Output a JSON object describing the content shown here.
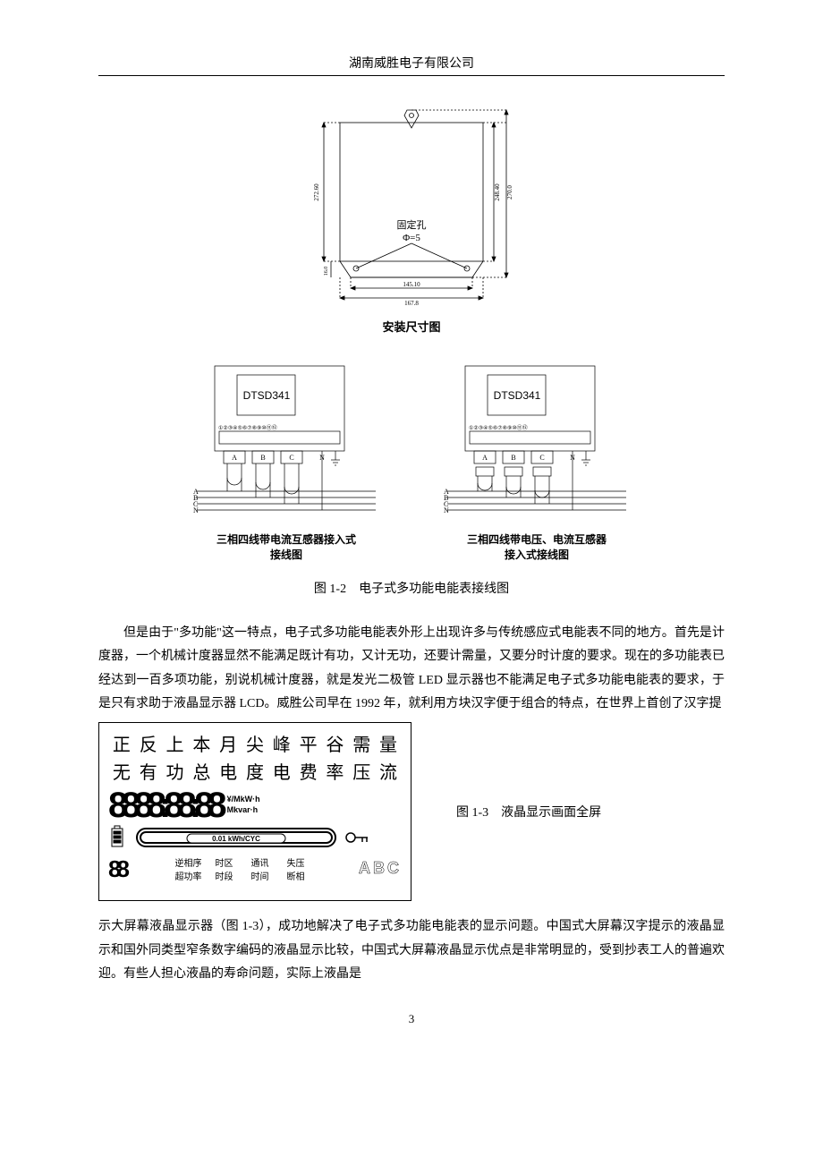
{
  "header": {
    "company": "湖南威胜电子有限公司"
  },
  "dim_diagram": {
    "caption": "安装尺寸图",
    "hole_label1": "固定孔",
    "hole_label2": "Φ=5",
    "w_inner": "145.10",
    "w_outer": "167.8",
    "h_left": "272.60",
    "h_r1": "248.40",
    "h_r2": "270.0",
    "h_bottom_offset": "16.0",
    "stroke": "#000000",
    "bg": "#ffffff"
  },
  "wiring": {
    "model": "DTSD341",
    "phases": [
      "A",
      "B",
      "C"
    ],
    "neutral": "N",
    "bus_labels": [
      "A",
      "B",
      "C",
      "N"
    ],
    "captions": {
      "left_l1": "三相四线带电流互感器接入式",
      "left_l2": "接线图",
      "right_l1": "三相四线带电压、电流互感器",
      "right_l2": "接入式接线图"
    },
    "fig_caption": "图 1-2　电子式多功能电能表接线图",
    "terminal_count": 12
  },
  "para1": "但是由于\"多功能\"这一特点，电子式多功能电能表外形上出现许多与传统感应式电能表不同的地方。首先是计度器，一个机械计度器显然不能满足既计有功，又计无功，还要计需量，又要分时计度的要求。现在的多功能表已经达到一百多项功能，别说机械计度器，就是发光二极管 LED 显示器也不能满足电子式多功能电能表的要求，于是只有求助于液晶显示器 LCD。威胜公司早在 1992 年，就利用方块汉字便于组合的特点，在世界上首创了汉字提",
  "lcd": {
    "row1": [
      "正",
      "反",
      "上",
      "本",
      "月",
      "尖",
      "峰",
      "平",
      "谷",
      "需",
      "量"
    ],
    "row2": [
      "无",
      "有",
      "功",
      "总",
      "电",
      "度",
      "电",
      "费",
      "率",
      "压",
      "流"
    ],
    "digits_main": "8888:88:88",
    "units1": "¥/MkW·h",
    "units2": "Mkvar·h",
    "cyc_label": "0.01 kWh/CYC",
    "digits_small": "88",
    "bottom_grid": [
      "逆相序",
      "时区",
      "通讯",
      "失压",
      "超功率",
      "时段",
      "时间",
      "断相"
    ],
    "abc": "ABC",
    "caption": "图 1-3　液晶显示画面全屏"
  },
  "para2": "示大屏幕液晶显示器（图 1-3），成功地解决了电子式多功能电能表的显示问题。中国式大屏幕汉字提示的液晶显示和国外同类型窄条数字编码的液晶显示比较，中国式大屏幕液晶显示优点是非常明显的，受到抄表工人的普遍欢迎。有些人担心液晶的寿命问题，实际上液晶是",
  "page_number": "3"
}
